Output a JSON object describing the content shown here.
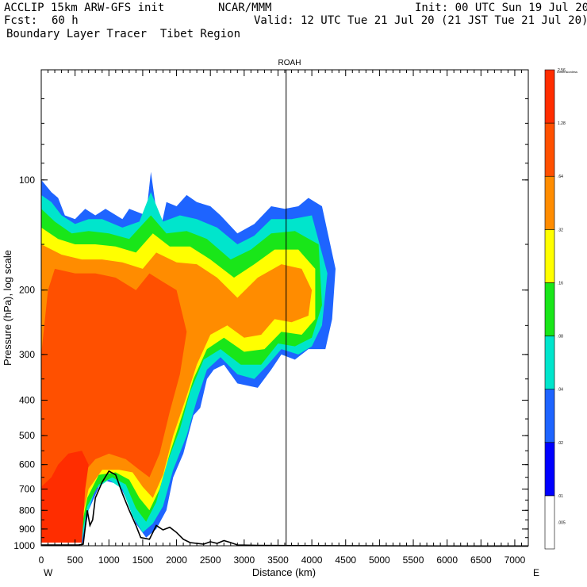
{
  "header": {
    "model": "ACCLIP 15km ARW-GFS init",
    "center": "NCAR/MMM",
    "init": "Init: 00 UTC Sun 19 Jul 20",
    "fcst_label": "Fcst:",
    "fcst_value": "60 h",
    "valid": "Valid: 12 UTC Tue 21 Jul 20 (21 JST Tue 21 Jul 20)",
    "product": "Boundary Layer Tracer  Tibet Region"
  },
  "chart_data": {
    "type": "heatmap",
    "title": "ROAH",
    "xlabel": "Distance (km)",
    "ylabel": "Pressure (hPa), log scale",
    "xlim": [
      0,
      7200
    ],
    "ylim": [
      1000,
      50
    ],
    "y_scale": "log",
    "x_ticks": [
      0,
      500,
      1000,
      1500,
      2000,
      2500,
      3000,
      3500,
      4000,
      4500,
      5000,
      5500,
      6000,
      6500,
      7000
    ],
    "y_ticks": [
      100,
      200,
      300,
      400,
      500,
      600,
      700,
      800,
      900,
      1000
    ],
    "x_end_labels": {
      "left": "W",
      "right": "E"
    },
    "marker_line_km": 3620,
    "colorbar": {
      "title": "Dimensionless",
      "levels": [
        ".005",
        ".01",
        ".02",
        ".04",
        ".08",
        ".16",
        ".32",
        ".64",
        "1.28",
        "2.56"
      ],
      "colors": [
        "#ffffff",
        "#0000ff",
        "#1e64ff",
        "#00e5cc",
        "#19e619",
        "#ffff00",
        "#ff8c00",
        "#ff5000",
        "#ff2d00"
      ]
    },
    "terrain_km_hpa": [
      [
        0,
        995
      ],
      [
        550,
        995
      ],
      [
        620,
        990
      ],
      [
        680,
        800
      ],
      [
        720,
        880
      ],
      [
        760,
        850
      ],
      [
        800,
        740
      ],
      [
        900,
        670
      ],
      [
        1000,
        625
      ],
      [
        1100,
        640
      ],
      [
        1200,
        720
      ],
      [
        1300,
        800
      ],
      [
        1400,
        880
      ],
      [
        1470,
        950
      ],
      [
        1600,
        960
      ],
      [
        1700,
        880
      ],
      [
        1800,
        905
      ],
      [
        1900,
        890
      ],
      [
        2000,
        920
      ],
      [
        2100,
        960
      ],
      [
        2200,
        980
      ],
      [
        2400,
        990
      ],
      [
        2500,
        975
      ],
      [
        2600,
        985
      ],
      [
        2700,
        968
      ],
      [
        2800,
        980
      ],
      [
        2900,
        995
      ],
      [
        3200,
        998
      ],
      [
        6500,
        1002
      ],
      [
        7200,
        1002
      ]
    ],
    "tracer_regions": [
      {
        "level": ".01",
        "outline_km_hpa": [
          [
            0,
            100
          ],
          [
            150,
            108
          ],
          [
            250,
            112
          ],
          [
            350,
            125
          ],
          [
            500,
            128
          ],
          [
            650,
            120
          ],
          [
            800,
            125
          ],
          [
            950,
            120
          ],
          [
            1200,
            128
          ],
          [
            1300,
            120
          ],
          [
            1550,
            125
          ],
          [
            1620,
            95
          ],
          [
            1750,
            140
          ],
          [
            1850,
            115
          ],
          [
            2000,
            118
          ],
          [
            2150,
            110
          ],
          [
            2300,
            115
          ],
          [
            2500,
            118
          ],
          [
            2650,
            125
          ],
          [
            2900,
            140
          ],
          [
            3150,
            132
          ],
          [
            3400,
            118
          ],
          [
            3600,
            120
          ],
          [
            3800,
            118
          ],
          [
            3950,
            112
          ],
          [
            4150,
            118
          ],
          [
            4350,
            175
          ],
          [
            4300,
            240
          ],
          [
            4200,
            290
          ],
          [
            3950,
            290
          ],
          [
            3750,
            310
          ],
          [
            3550,
            300
          ],
          [
            3400,
            330
          ],
          [
            3200,
            370
          ],
          [
            2900,
            360
          ],
          [
            2700,
            320
          ],
          [
            2550,
            330
          ],
          [
            2450,
            350
          ],
          [
            2350,
            420
          ],
          [
            2250,
            440
          ],
          [
            2100,
            560
          ],
          [
            1950,
            650
          ],
          [
            1850,
            800
          ],
          [
            1700,
            900
          ],
          [
            1550,
            950
          ],
          [
            1400,
            870
          ],
          [
            1250,
            740
          ],
          [
            1150,
            680
          ],
          [
            900,
            660
          ],
          [
            700,
            800
          ],
          [
            620,
            980
          ],
          [
            0,
            980
          ]
        ]
      },
      {
        "level": ".02",
        "outline_km_hpa": [
          [
            0,
            110
          ],
          [
            150,
            115
          ],
          [
            300,
            125
          ],
          [
            500,
            132
          ],
          [
            700,
            128
          ],
          [
            900,
            128
          ],
          [
            1200,
            135
          ],
          [
            1450,
            130
          ],
          [
            1620,
            108
          ],
          [
            1800,
            130
          ],
          [
            2050,
            125
          ],
          [
            2300,
            128
          ],
          [
            2600,
            135
          ],
          [
            2900,
            150
          ],
          [
            3150,
            142
          ],
          [
            3400,
            128
          ],
          [
            3700,
            128
          ],
          [
            4000,
            125
          ],
          [
            4230,
            180
          ],
          [
            4150,
            250
          ],
          [
            4000,
            285
          ],
          [
            3800,
            300
          ],
          [
            3550,
            290
          ],
          [
            3350,
            320
          ],
          [
            3150,
            350
          ],
          [
            2900,
            340
          ],
          [
            2650,
            305
          ],
          [
            2450,
            330
          ],
          [
            2300,
            400
          ],
          [
            2150,
            500
          ],
          [
            1950,
            620
          ],
          [
            1800,
            780
          ],
          [
            1650,
            870
          ],
          [
            1500,
            920
          ],
          [
            1350,
            830
          ],
          [
            1200,
            700
          ],
          [
            1000,
            660
          ],
          [
            800,
            700
          ],
          [
            680,
            820
          ],
          [
            600,
            975
          ],
          [
            0,
            975
          ]
        ]
      },
      {
        "level": ".04",
        "outline_km_hpa": [
          [
            0,
            120
          ],
          [
            200,
            130
          ],
          [
            450,
            140
          ],
          [
            700,
            138
          ],
          [
            1000,
            140
          ],
          [
            1300,
            145
          ],
          [
            1620,
            125
          ],
          [
            1850,
            140
          ],
          [
            2150,
            138
          ],
          [
            2450,
            145
          ],
          [
            2800,
            165
          ],
          [
            3100,
            155
          ],
          [
            3400,
            140
          ],
          [
            3750,
            138
          ],
          [
            4100,
            150
          ],
          [
            4150,
            220
          ],
          [
            4000,
            270
          ],
          [
            3750,
            285
          ],
          [
            3500,
            280
          ],
          [
            3250,
            320
          ],
          [
            2950,
            320
          ],
          [
            2650,
            290
          ],
          [
            2400,
            310
          ],
          [
            2200,
            380
          ],
          [
            2050,
            480
          ],
          [
            1850,
            600
          ],
          [
            1700,
            760
          ],
          [
            1550,
            860
          ],
          [
            1400,
            790
          ],
          [
            1250,
            680
          ],
          [
            1050,
            650
          ],
          [
            850,
            680
          ],
          [
            680,
            780
          ],
          [
            580,
            970
          ],
          [
            0,
            970
          ]
        ]
      },
      {
        "level": ".08",
        "outline_km_hpa": [
          [
            0,
            135
          ],
          [
            250,
            145
          ],
          [
            500,
            150
          ],
          [
            800,
            150
          ],
          [
            1100,
            152
          ],
          [
            1400,
            158
          ],
          [
            1650,
            140
          ],
          [
            1900,
            152
          ],
          [
            2200,
            152
          ],
          [
            2500,
            165
          ],
          [
            2850,
            185
          ],
          [
            3150,
            170
          ],
          [
            3450,
            155
          ],
          [
            3800,
            155
          ],
          [
            4050,
            175
          ],
          [
            4050,
            240
          ],
          [
            3850,
            265
          ],
          [
            3550,
            260
          ],
          [
            3300,
            290
          ],
          [
            3000,
            295
          ],
          [
            2700,
            270
          ],
          [
            2450,
            290
          ],
          [
            2250,
            350
          ],
          [
            2100,
            430
          ],
          [
            1900,
            560
          ],
          [
            1750,
            700
          ],
          [
            1600,
            800
          ],
          [
            1450,
            740
          ],
          [
            1300,
            660
          ],
          [
            1100,
            630
          ],
          [
            850,
            640
          ],
          [
            680,
            740
          ],
          [
            560,
            960
          ],
          [
            0,
            960
          ]
        ]
      },
      {
        "level": ".16",
        "outline_km_hpa": [
          [
            0,
            150
          ],
          [
            300,
            160
          ],
          [
            600,
            165
          ],
          [
            900,
            165
          ],
          [
            1200,
            168
          ],
          [
            1500,
            175
          ],
          [
            1700,
            158
          ],
          [
            2000,
            168
          ],
          [
            2300,
            170
          ],
          [
            2600,
            185
          ],
          [
            2900,
            210
          ],
          [
            3200,
            185
          ],
          [
            3550,
            170
          ],
          [
            3850,
            175
          ],
          [
            4000,
            200
          ],
          [
            3950,
            235
          ],
          [
            3700,
            245
          ],
          [
            3450,
            240
          ],
          [
            3250,
            265
          ],
          [
            3000,
            270
          ],
          [
            2750,
            250
          ],
          [
            2500,
            265
          ],
          [
            2300,
            320
          ],
          [
            2150,
            390
          ],
          [
            1950,
            500
          ],
          [
            1800,
            640
          ],
          [
            1650,
            740
          ],
          [
            1500,
            690
          ],
          [
            1350,
            630
          ],
          [
            1150,
            620
          ],
          [
            900,
            620
          ],
          [
            700,
            700
          ],
          [
            540,
            950
          ],
          [
            0,
            950
          ]
        ]
      },
      {
        "level": ".32",
        "outline_km_hpa": [
          [
            200,
            175
          ],
          [
            500,
            180
          ],
          [
            800,
            180
          ],
          [
            1100,
            185
          ],
          [
            1400,
            200
          ],
          [
            1600,
            180
          ],
          [
            1800,
            190
          ],
          [
            2000,
            200
          ],
          [
            2150,
            260
          ],
          [
            2050,
            340
          ],
          [
            1900,
            430
          ],
          [
            1750,
            560
          ],
          [
            1600,
            650
          ],
          [
            1450,
            620
          ],
          [
            1250,
            580
          ],
          [
            1000,
            560
          ],
          [
            800,
            580
          ],
          [
            600,
            640
          ],
          [
            400,
            720
          ],
          [
            200,
            800
          ],
          [
            100,
            950
          ],
          [
            0,
            950
          ],
          [
            0,
            300
          ],
          [
            100,
            200
          ]
        ]
      },
      {
        "level": ".64",
        "outline_km_hpa": [
          [
            0,
            690
          ],
          [
            150,
            650
          ],
          [
            250,
            600
          ],
          [
            400,
            560
          ],
          [
            600,
            550
          ],
          [
            700,
            600
          ],
          [
            650,
            700
          ],
          [
            600,
            980
          ],
          [
            0,
            980
          ]
        ]
      }
    ]
  }
}
